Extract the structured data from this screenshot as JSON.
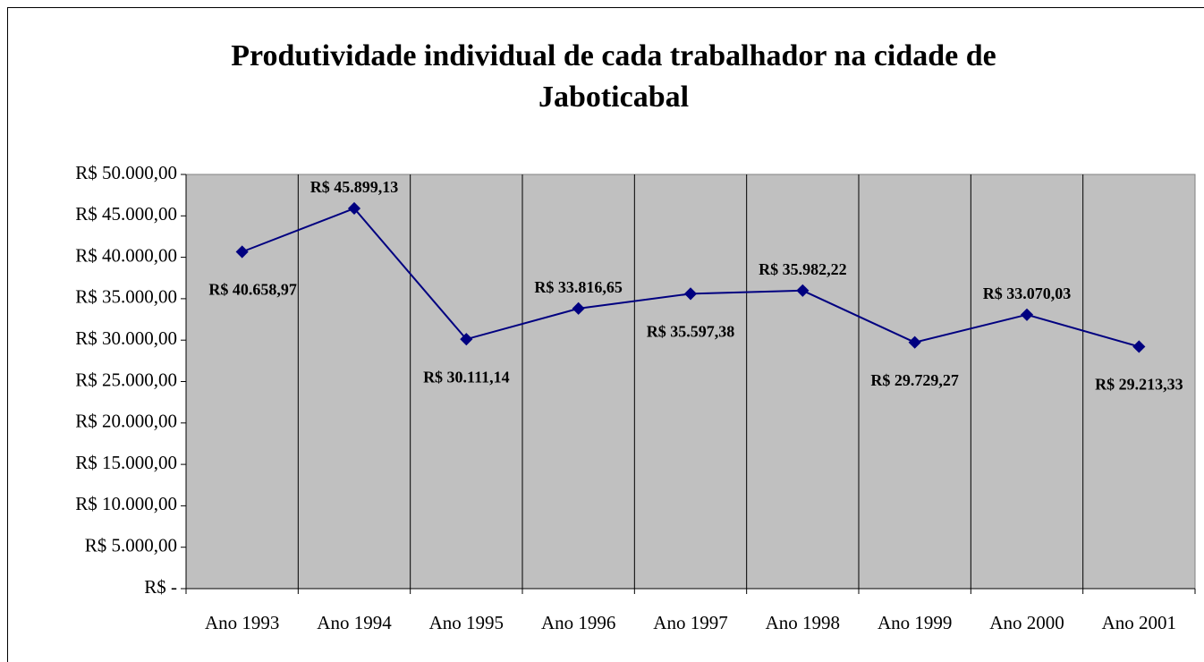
{
  "chart_data": {
    "type": "line",
    "title": "Produtividade individual de cada trabalhador na cidade de Jaboticabal",
    "categories": [
      "Ano 1993",
      "Ano 1994",
      "Ano 1995",
      "Ano 1996",
      "Ano 1997",
      "Ano 1998",
      "Ano 1999",
      "Ano 2000",
      "Ano 2001"
    ],
    "series": [
      {
        "name": "Produtividade",
        "color": "#000080",
        "values": [
          40658.97,
          45899.13,
          30111.14,
          33816.65,
          35597.38,
          35982.22,
          29729.27,
          33070.03,
          29213.33
        ],
        "value_labels": [
          "R$ 40.658,97",
          "R$ 45.899,13",
          "R$ 30.111,14",
          "R$ 33.816,65",
          "R$ 35.597,38",
          "R$ 35.982,22",
          "R$ 29.729,27",
          "R$ 33.070,03",
          "R$ 29.213,33"
        ]
      }
    ],
    "ylim": [
      0,
      50000
    ],
    "yticks": [
      {
        "value": 0,
        "label": "R$ -"
      },
      {
        "value": 5000,
        "label": "R$ 5.000,00"
      },
      {
        "value": 10000,
        "label": "R$ 10.000,00"
      },
      {
        "value": 15000,
        "label": "R$ 15.000,00"
      },
      {
        "value": 20000,
        "label": "R$ 20.000,00"
      },
      {
        "value": 25000,
        "label": "R$ 25.000,00"
      },
      {
        "value": 30000,
        "label": "R$ 30.000,00"
      },
      {
        "value": 35000,
        "label": "R$ 35.000,00"
      },
      {
        "value": 40000,
        "label": "R$ 40.000,00"
      },
      {
        "value": 45000,
        "label": "R$ 45.000,00"
      },
      {
        "value": 50000,
        "label": "R$ 50.000,00"
      }
    ],
    "plot_background": "#c0c0c0",
    "grid": true
  }
}
